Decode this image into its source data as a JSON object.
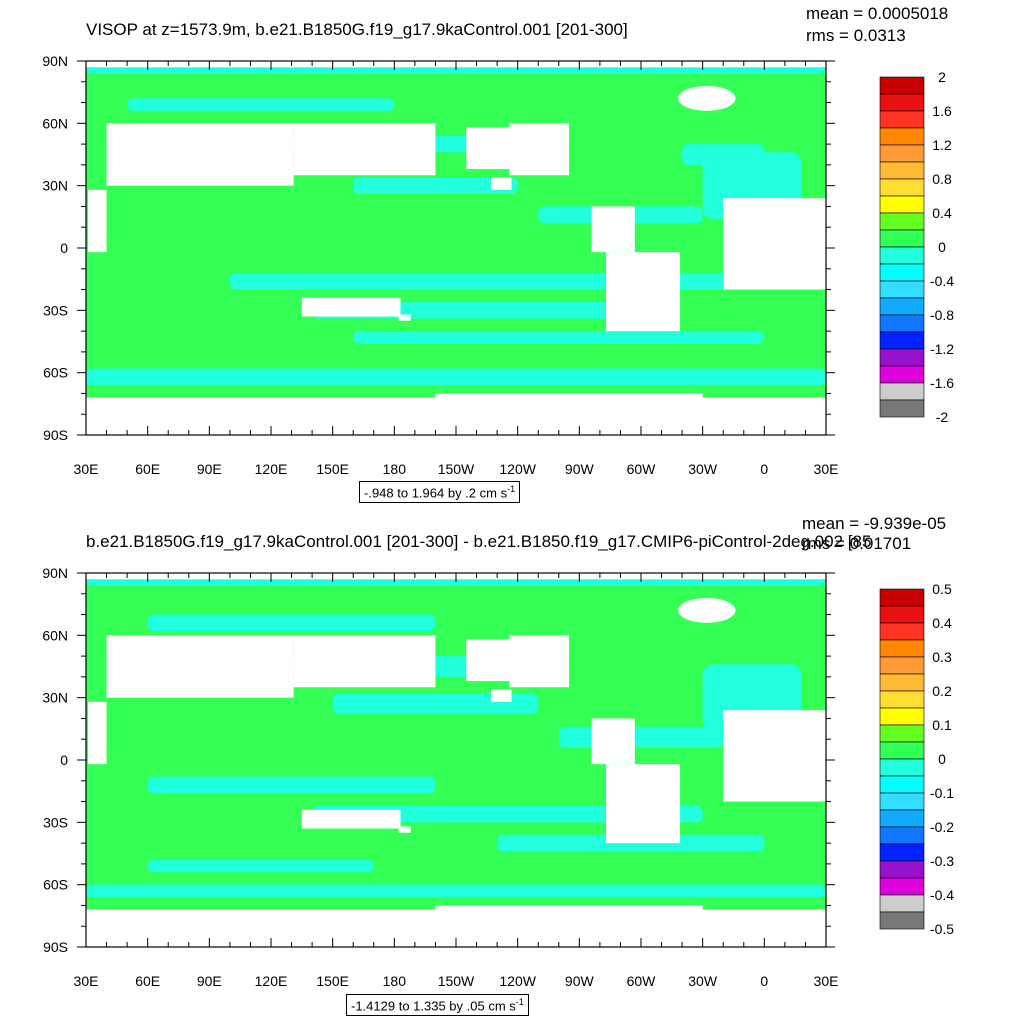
{
  "colors": {
    "ocean_green": "#33ff55",
    "ocean_cyan": "#22ffdd",
    "land": "#ffffff",
    "frame": "#000000"
  },
  "chart_data": [
    {
      "type": "heatmap",
      "title": "VISOP at z=1573.9m, b.e21.B1850G.f19_g17.9kaControl.001 [201-300]",
      "mean_text": "mean = 0.0005018",
      "rms_text": "rms = 0.0313",
      "x_ticklabels": [
        "30E",
        "60E",
        "90E",
        "120E",
        "150E",
        "180",
        "150W",
        "120W",
        "90W",
        "60W",
        "30W",
        "0",
        "30E"
      ],
      "y_ticklabels": [
        "90N",
        "60N",
        "30N",
        "0",
        "30S",
        "60S",
        "90S"
      ],
      "xlim": [
        30,
        390
      ],
      "ylim": [
        -90,
        90
      ],
      "range_text": "-.948 to 1.964 by .2 cm s",
      "range_sup": "-1",
      "colorbar": {
        "labels": [
          "2",
          "1.6",
          "1.2",
          "0.8",
          "0.4",
          "0",
          "-0.4",
          "-0.8",
          "-1.2",
          "-1.6",
          "-2"
        ],
        "colors": [
          "#c80000",
          "#e81010",
          "#ff3322",
          "#ff8800",
          "#ff9933",
          "#ffbb33",
          "#ffdd33",
          "#ffff00",
          "#66ff22",
          "#33ff55",
          "#22ffdd",
          "#00ffff",
          "#33ddff",
          "#11aaff",
          "#1177ff",
          "#0022ff",
          "#9911cc",
          "#dd00dd",
          "#cccccc",
          "#777777"
        ]
      },
      "grid": false
    },
    {
      "type": "heatmap",
      "title": "b.e21.B1850G.f19_g17.9kaControl.001 [201-300] - b.e21.B1850.f19_g17.CMIP6-piControl-2deg.002 [85",
      "mean_text": "mean = -9.939e-05",
      "rms_text": "rms = 0.01701",
      "x_ticklabels": [
        "30E",
        "60E",
        "90E",
        "120E",
        "150E",
        "180",
        "150W",
        "120W",
        "90W",
        "60W",
        "30W",
        "0",
        "30E"
      ],
      "y_ticklabels": [
        "90N",
        "60N",
        "30N",
        "0",
        "30S",
        "60S",
        "90S"
      ],
      "xlim": [
        30,
        390
      ],
      "ylim": [
        -90,
        90
      ],
      "range_text": "-1.4129 to 1.335 by .05 cm s",
      "range_sup": "-1",
      "colorbar": {
        "labels": [
          "0.5",
          "0.4",
          "0.3",
          "0.2",
          "0.1",
          "0",
          "-0.1",
          "-0.2",
          "-0.3",
          "-0.4",
          "-0.5"
        ],
        "colors": [
          "#c80000",
          "#e81010",
          "#ff3322",
          "#ff8800",
          "#ff9933",
          "#ffbb33",
          "#ffdd33",
          "#ffff00",
          "#66ff22",
          "#33ff55",
          "#22ffdd",
          "#00ffff",
          "#33ddff",
          "#11aaff",
          "#1177ff",
          "#0022ff",
          "#9911cc",
          "#dd00dd",
          "#cccccc",
          "#777777"
        ]
      },
      "grid": false
    }
  ]
}
